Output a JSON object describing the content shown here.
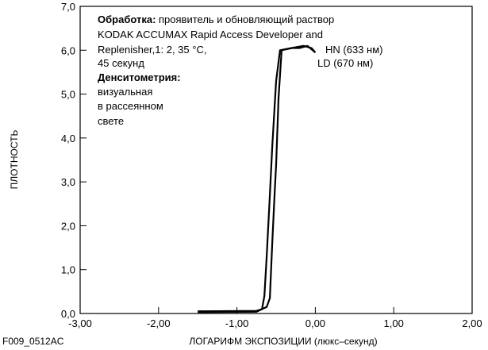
{
  "chart_data": {
    "type": "line",
    "xlabel": "ЛОГАРИФМ ЭКСПОЗИЦИИ (люкс–секунд)",
    "ylabel": "ПЛОТНОСТЬ",
    "xlim": [
      -3.0,
      2.0
    ],
    "ylim": [
      0.0,
      7.0
    ],
    "x_ticks": [
      "-3,00",
      "-2,00",
      "-1,00",
      "0,00",
      "1,00",
      "2,00"
    ],
    "y_ticks": [
      "0,0",
      "1,0",
      "2,0",
      "3,0",
      "4,0",
      "5,0",
      "6,0",
      "7,0"
    ],
    "grid": false,
    "series": [
      {
        "name": "HN (633 нм)",
        "points": [
          [
            -1.5,
            0.05
          ],
          [
            -0.75,
            0.06
          ],
          [
            -0.68,
            0.1
          ],
          [
            -0.65,
            0.4
          ],
          [
            -0.62,
            1.3
          ],
          [
            -0.58,
            2.7
          ],
          [
            -0.55,
            3.8
          ],
          [
            -0.5,
            5.3
          ],
          [
            -0.45,
            6.0
          ],
          [
            -0.3,
            6.05
          ],
          [
            -0.2,
            6.05
          ],
          [
            -0.1,
            6.1
          ],
          [
            0.0,
            5.95
          ]
        ]
      },
      {
        "name": "LD (670 нм)",
        "points": [
          [
            -1.5,
            0.03
          ],
          [
            -0.75,
            0.04
          ],
          [
            -0.62,
            0.15
          ],
          [
            -0.58,
            0.35
          ],
          [
            -0.55,
            1.6
          ],
          [
            -0.52,
            2.7
          ],
          [
            -0.5,
            3.4
          ],
          [
            -0.47,
            4.9
          ],
          [
            -0.43,
            6.0
          ],
          [
            -0.3,
            6.05
          ],
          [
            -0.15,
            6.1
          ],
          [
            -0.05,
            6.05
          ],
          [
            0.0,
            5.95
          ]
        ]
      }
    ]
  },
  "annotation": {
    "processing_label": "Обработка:",
    "processing_text_1": " проявитель и обновляющий раствор",
    "processing_text_2": "KODAK ACCUMAX Rapid Access Developer and",
    "processing_text_3": "Replenisher,1: 2, 35 °C,",
    "processing_text_4": "45 секунд",
    "densitometry_label": "Денситометрия:",
    "densitometry_text_1": "визуальная",
    "densitometry_text_2": "в рассеянном",
    "densitometry_text_3": "свете"
  },
  "figure_code": "F009_0512AC"
}
